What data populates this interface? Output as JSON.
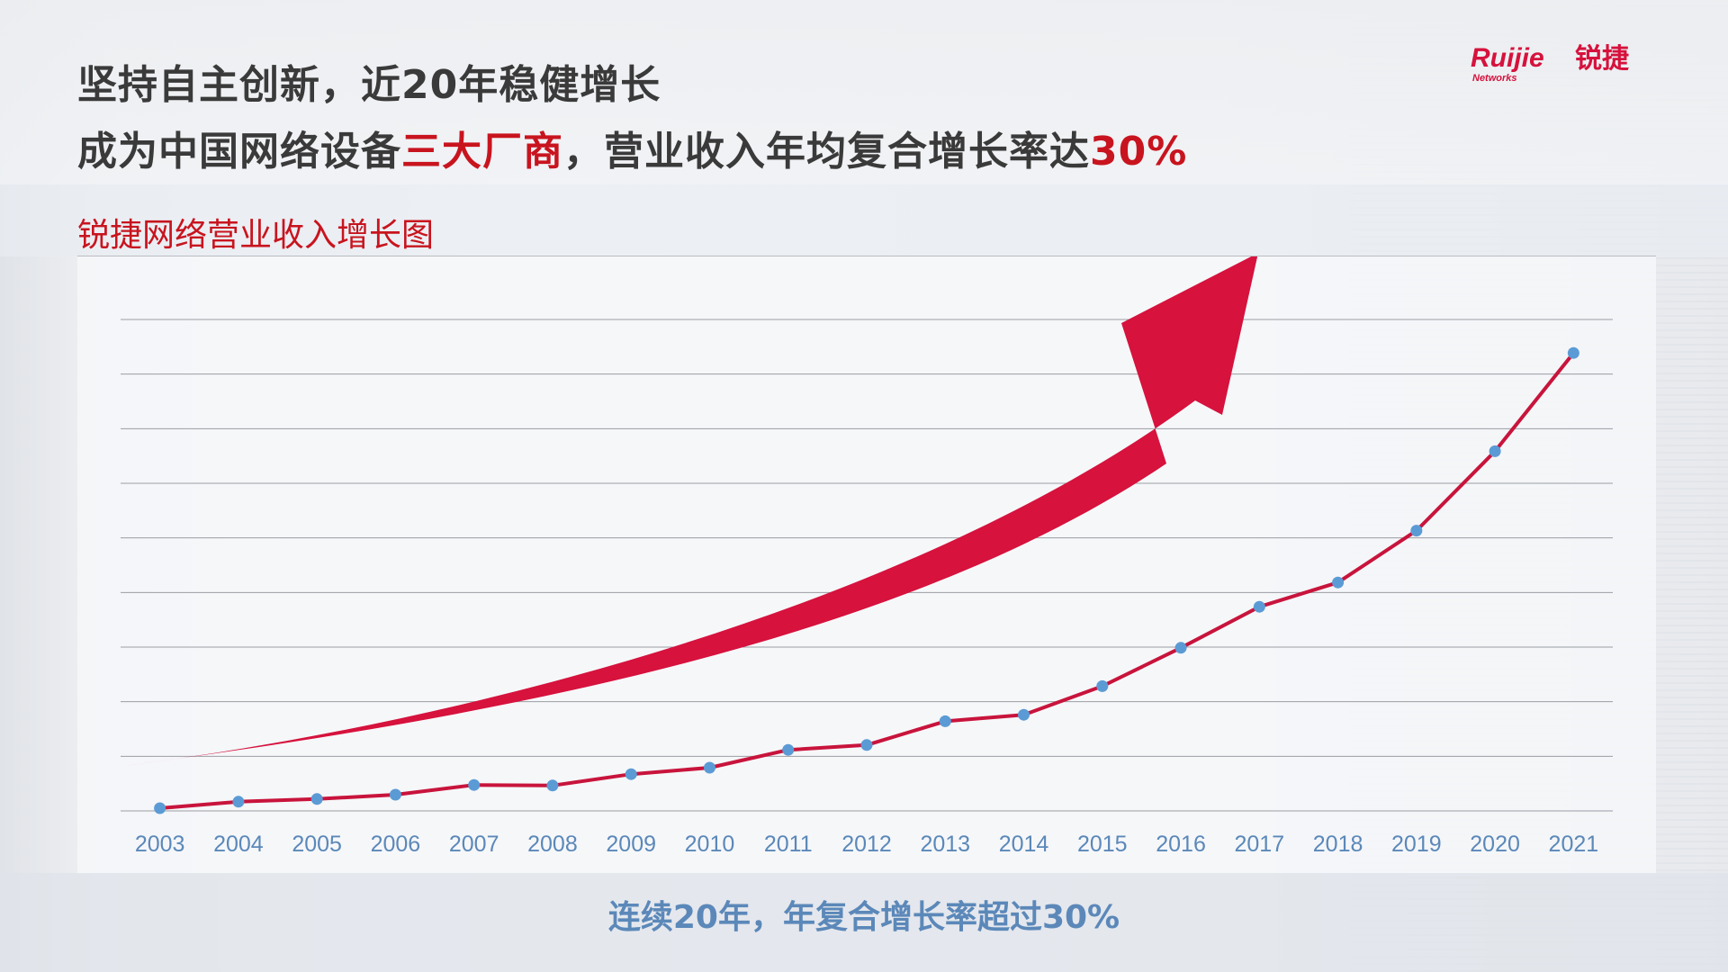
{
  "header": {
    "line1": "坚持自主创新，近20年稳健增长",
    "line2_pre": "成为中国网络设备",
    "line2_highlight": "三大厂商",
    "line2_mid": "，营业收入年均复合增长率达",
    "line2_highlight2": "30%",
    "highlight_color": "#c8141e"
  },
  "logo": {
    "brand": "Ruijie",
    "chinese": "锐捷",
    "sub": "Networks"
  },
  "chart_title": "锐捷网络营业收入增长图",
  "footer": "连续20年，年复合增长率超过30%",
  "colors": {
    "line": "#c8143c",
    "marker": "#5b9bd5",
    "arrow": "#d6123d",
    "grid": "#9a9da3",
    "tick_text": "#5b88b9"
  },
  "chart_data": {
    "type": "line",
    "x": [
      "2003",
      "2004",
      "2005",
      "2006",
      "2007",
      "2008",
      "2009",
      "2010",
      "2011",
      "2012",
      "2013",
      "2014",
      "2015",
      "2016",
      "2017",
      "2018",
      "2019",
      "2020",
      "2021"
    ],
    "series": [
      {
        "values": [
          0.5,
          1.7,
          2.2,
          3.0,
          4.8,
          4.7,
          6.8,
          8.0,
          11.3,
          12.2,
          16.6,
          17.8,
          23.1,
          30.2,
          37.8,
          42.3,
          51.9,
          66.6,
          84.8
        ]
      }
    ],
    "ylim": [
      0,
      91
    ],
    "y_axis_labels": false,
    "grid": "horizontal",
    "annotation": "upward growth arrow"
  }
}
